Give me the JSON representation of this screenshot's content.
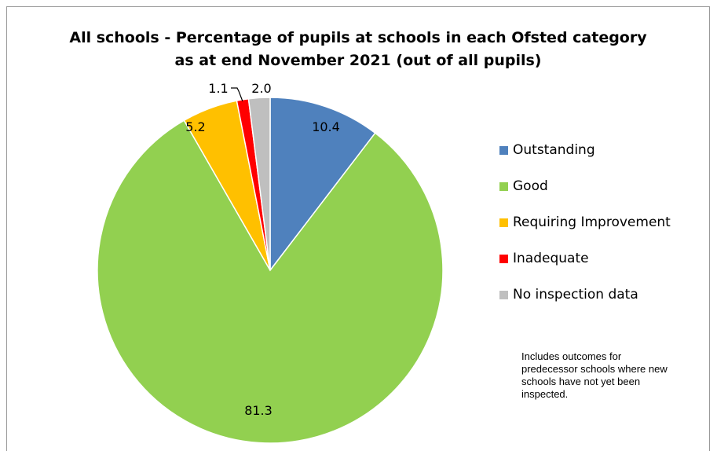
{
  "chart_data": {
    "type": "pie",
    "title_line1": "All schools - Percentage of pupils at schools in each Ofsted category",
    "title_line2": "as at end November 2021 (out of all pupils)",
    "categories": [
      "Outstanding",
      "Good",
      "Requiring Improvement",
      "Inadequate",
      "No inspection data"
    ],
    "values": [
      10.4,
      81.3,
      5.2,
      1.1,
      2.0
    ],
    "data_labels": [
      "10.4",
      "81.3",
      "5.2",
      "1.1",
      "2.0"
    ],
    "colors": [
      "#4f81bd",
      "#92d050",
      "#ffc000",
      "#ff0000",
      "#bfbfbf"
    ],
    "legend_position": "right",
    "note": "Includes outcomes for predecessor schools where new schools have not yet been inspected."
  }
}
